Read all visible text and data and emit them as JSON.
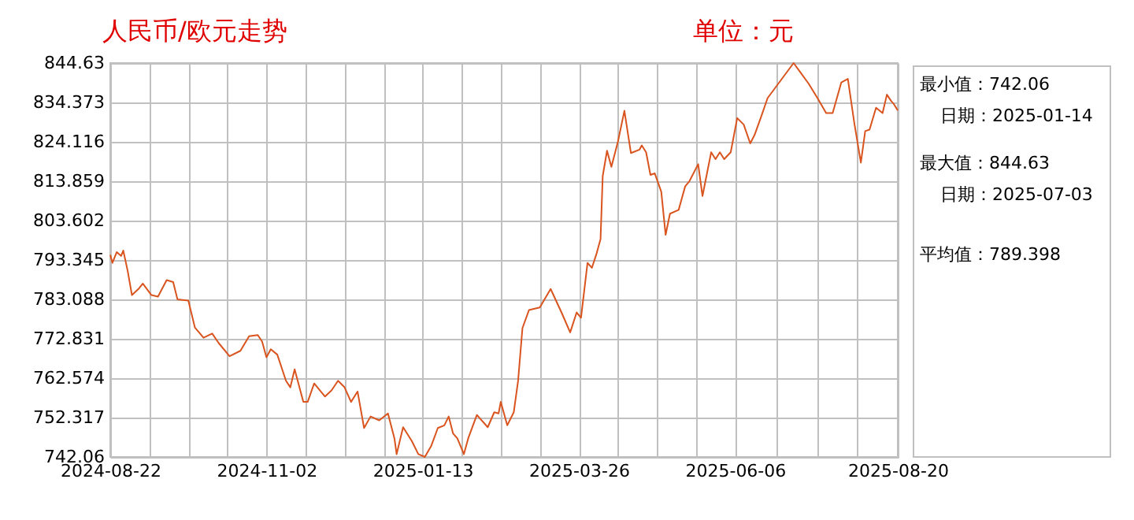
{
  "chart_data": {
    "type": "line",
    "title": "人民币/欧元走势",
    "annotations": [
      "单位：元",
      "最小值：742.06",
      "日期：2025-01-14",
      "最大值：844.63",
      "日期：2025-07-03",
      "平均值：789.398"
    ],
    "x": [
      "2024-08-22",
      "2024-08-23",
      "2024-08-25",
      "2024-08-27",
      "2024-08-28",
      "2024-08-30",
      "2024-09-01",
      "2024-09-04",
      "2024-09-06",
      "2024-09-10",
      "2024-09-13",
      "2024-09-17",
      "2024-09-20",
      "2024-09-22",
      "2024-09-27",
      "2024-09-30",
      "2024-10-04",
      "2024-10-08",
      "2024-10-11",
      "2024-10-16",
      "2024-10-21",
      "2024-10-25",
      "2024-10-29",
      "2024-10-31",
      "2024-11-02",
      "2024-11-04",
      "2024-11-07",
      "2024-11-11",
      "2024-11-13",
      "2024-11-15",
      "2024-11-19",
      "2024-11-21",
      "2024-11-24",
      "2024-11-29",
      "2024-12-02",
      "2024-12-05",
      "2024-12-08",
      "2024-12-11",
      "2024-12-14",
      "2024-12-17",
      "2024-12-20",
      "2024-12-24",
      "2024-12-28",
      "2024-12-31",
      "2025-01-01",
      "2025-01-04",
      "2025-01-08",
      "2025-01-11",
      "2025-01-14",
      "2025-01-17",
      "2025-01-20",
      "2025-01-23",
      "2025-01-25",
      "2025-01-27",
      "2025-01-29",
      "2025-02-01",
      "2025-02-03",
      "2025-02-07",
      "2025-02-12",
      "2025-02-15",
      "2025-02-17",
      "2025-02-18",
      "2025-02-21",
      "2025-02-24",
      "2025-02-26",
      "2025-02-28",
      "2025-03-03",
      "2025-03-08",
      "2025-03-13",
      "2025-03-18",
      "2025-03-22",
      "2025-03-25",
      "2025-03-27",
      "2025-03-30",
      "2025-04-01",
      "2025-04-03",
      "2025-04-05",
      "2025-04-06",
      "2025-04-08",
      "2025-04-10",
      "2025-04-13",
      "2025-04-16",
      "2025-04-19",
      "2025-04-23",
      "2025-04-24",
      "2025-04-26",
      "2025-04-28",
      "2025-04-30",
      "2025-05-03",
      "2025-05-05",
      "2025-05-07",
      "2025-05-11",
      "2025-05-14",
      "2025-05-16",
      "2025-05-20",
      "2025-05-22",
      "2025-05-26",
      "2025-05-28",
      "2025-05-30",
      "2025-06-01",
      "2025-06-04",
      "2025-06-07",
      "2025-06-10",
      "2025-06-13",
      "2025-06-15",
      "2025-06-18",
      "2025-06-21",
      "2025-07-03",
      "2025-07-06",
      "2025-07-10",
      "2025-07-14",
      "2025-07-18",
      "2025-07-21",
      "2025-07-25",
      "2025-07-28",
      "2025-07-31",
      "2025-08-03",
      "2025-08-05",
      "2025-08-07",
      "2025-08-10",
      "2025-08-13",
      "2025-08-15",
      "2025-08-17",
      "2025-08-18",
      "2025-08-20"
    ],
    "series": [
      {
        "color": "#d9541e",
        "values": [
          794.7,
          792.6,
          795.4,
          794.4,
          795.8,
          790.6,
          784.2,
          785.8,
          787.2,
          784.2,
          783.8,
          788.1,
          787.6,
          783.1,
          782.8,
          775.8,
          773.1,
          774.2,
          771.7,
          768.3,
          769.7,
          773.5,
          773.8,
          772.1,
          768.0,
          770.1,
          768.7,
          761.9,
          760.2,
          764.9,
          756.4,
          756.4,
          761.2,
          757.8,
          759.4,
          761.9,
          760.2,
          756.4,
          759.1,
          749.6,
          752.6,
          751.6,
          753.4,
          746.9,
          742.8,
          749.8,
          746.2,
          742.8,
          742.06,
          745.0,
          749.6,
          750.3,
          752.6,
          748.2,
          746.9,
          742.8,
          746.9,
          753.0,
          749.8,
          753.7,
          753.4,
          756.4,
          750.3,
          753.7,
          761.9,
          775.6,
          780.3,
          781.0,
          785.8,
          779.7,
          774.5,
          779.7,
          778.3,
          792.6,
          791.3,
          794.7,
          798.8,
          815.2,
          821.8,
          817.6,
          824.1,
          832.2,
          821.2,
          822.1,
          823.2,
          821.4,
          815.5,
          815.9,
          811.1,
          799.9,
          805.4,
          806.4,
          812.5,
          813.9,
          818.3,
          810.0,
          821.4,
          819.6,
          821.4,
          819.6,
          821.4,
          830.3,
          828.6,
          823.7,
          825.9,
          830.6,
          835.5,
          844.63,
          842.3,
          839.2,
          835.5,
          831.6,
          831.6,
          839.6,
          840.5,
          828.9,
          818.7,
          826.9,
          827.3,
          833.0,
          831.6,
          836.4,
          834.7,
          834.1,
          832.3
        ]
      }
    ],
    "xlim": [
      "2024-08-22",
      "2025-08-20"
    ],
    "xticks": [
      {
        "value": "2024-08-22",
        "label": "2024-08-22"
      },
      {
        "value": "2024-09-09",
        "label": null
      },
      {
        "value": "2024-09-27",
        "label": null
      },
      {
        "value": "2024-10-15",
        "label": null
      },
      {
        "value": "2024-11-02",
        "label": "2024-11-02"
      },
      {
        "value": "2024-11-20",
        "label": null
      },
      {
        "value": "2024-12-08",
        "label": null
      },
      {
        "value": "2024-12-26",
        "label": null
      },
      {
        "value": "2025-01-13",
        "label": "2025-01-13"
      },
      {
        "value": "2025-01-31",
        "label": null
      },
      {
        "value": "2025-02-18",
        "label": null
      },
      {
        "value": "2025-03-08",
        "label": null
      },
      {
        "value": "2025-03-26",
        "label": "2025-03-26"
      },
      {
        "value": "2025-04-13",
        "label": null
      },
      {
        "value": "2025-05-01",
        "label": null
      },
      {
        "value": "2025-05-19",
        "label": null
      },
      {
        "value": "2025-06-06",
        "label": "2025-06-06"
      },
      {
        "value": "2025-06-25",
        "label": null
      },
      {
        "value": "2025-07-14",
        "label": null
      },
      {
        "value": "2025-08-01",
        "label": null
      },
      {
        "value": "2025-08-20",
        "label": "2025-08-20"
      }
    ],
    "ylim": [
      742.06,
      844.63
    ],
    "yticks": [
      742.06,
      752.317,
      762.574,
      772.831,
      783.088,
      793.345,
      803.602,
      813.859,
      824.116,
      834.373,
      844.63
    ],
    "grid": true,
    "marker": "none",
    "line_style": "solid"
  }
}
